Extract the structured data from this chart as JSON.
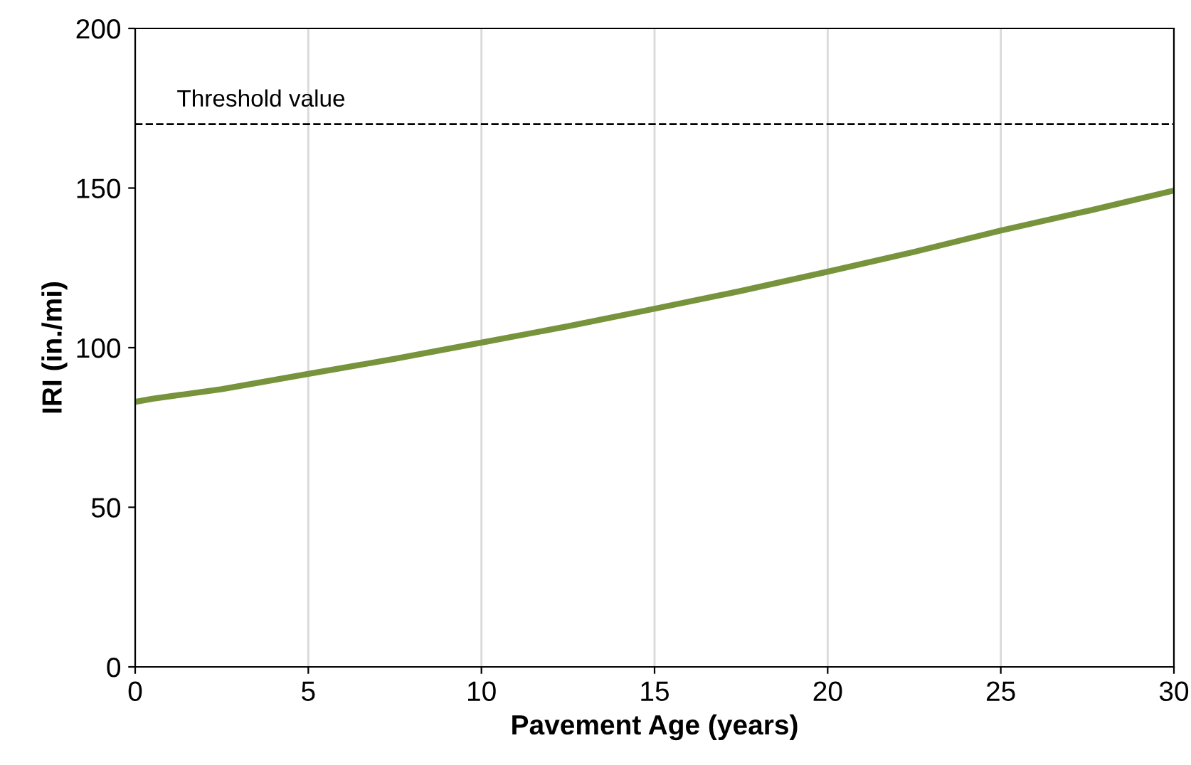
{
  "chart_data": {
    "type": "line",
    "xlabel": "Pavement Age (years)",
    "ylabel": "IRI (in./mi)",
    "x": [
      0,
      0.5,
      2.5,
      5,
      7.5,
      10,
      12.5,
      15,
      17.5,
      20,
      22.5,
      25,
      27.5,
      30
    ],
    "series": [
      {
        "color": "#77933c",
        "values": [
          83,
          84,
          87,
          91.8,
          96.5,
          101.6,
          106.7,
          112.2,
          117.8,
          123.8,
          130,
          136.7,
          142.8,
          149.2
        ]
      }
    ],
    "xlim": [
      0,
      30
    ],
    "xticks": [
      0,
      5,
      10,
      15,
      20,
      25,
      30
    ],
    "ylim": [
      0,
      200
    ],
    "yticks": [
      0,
      50,
      100,
      150,
      200
    ],
    "grid": "x",
    "marker": "none",
    "line_style": "solid",
    "ref_lines": [
      {
        "axis": "y",
        "value": 170,
        "label": "Threshold value",
        "color": "#000000",
        "line_style": "dashed"
      }
    ]
  }
}
